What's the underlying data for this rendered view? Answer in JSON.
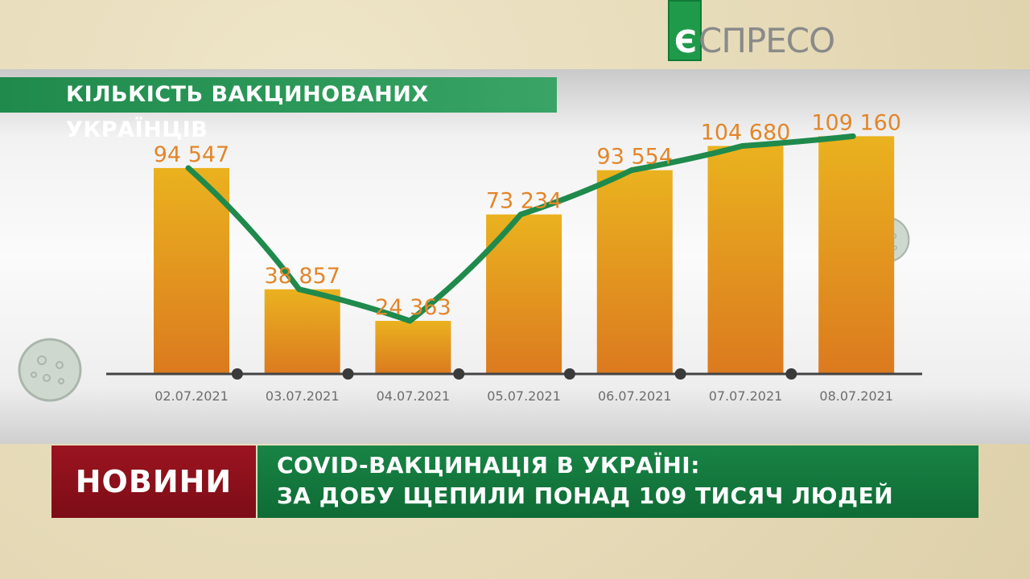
{
  "brand": {
    "logo_letter": "Є",
    "logo_text": "СПРЕСО",
    "logo_color": "#1f9a4a"
  },
  "chart_data": {
    "type": "bar",
    "title": "КІЛЬКІСТЬ ВАКЦИНОВАНИХ УКРАЇНЦІВ",
    "categories": [
      "02.07.2021",
      "03.07.2021",
      "04.07.2021",
      "05.07.2021",
      "06.07.2021",
      "07.07.2021",
      "08.07.2021"
    ],
    "values": [
      94547,
      38857,
      24363,
      73234,
      93554,
      104680,
      109160
    ],
    "value_labels": [
      "94 547",
      "38 857",
      "24 363",
      "73 234",
      "93 554",
      "104 680",
      "109 160"
    ],
    "overlay": "line",
    "ylim": [
      0,
      120000
    ],
    "bar_color": "#e6961f",
    "line_color": "#1f8a4c",
    "label_color": "#e2862a",
    "grid": false,
    "legend": "none"
  },
  "lower_third": {
    "tag": "НОВИНИ",
    "headline_line1": "COVID-ВАКЦИНАЦІЯ В УКРАЇНІ:",
    "headline_line2": "ЗА ДОБУ ЩЕПИЛИ ПОНАД 109 ТИСЯЧ ЛЮДЕЙ",
    "tag_color": "#8c1019",
    "headline_color": "#137a3e"
  },
  "decorations": {
    "virus_icon": "virus-icon"
  }
}
